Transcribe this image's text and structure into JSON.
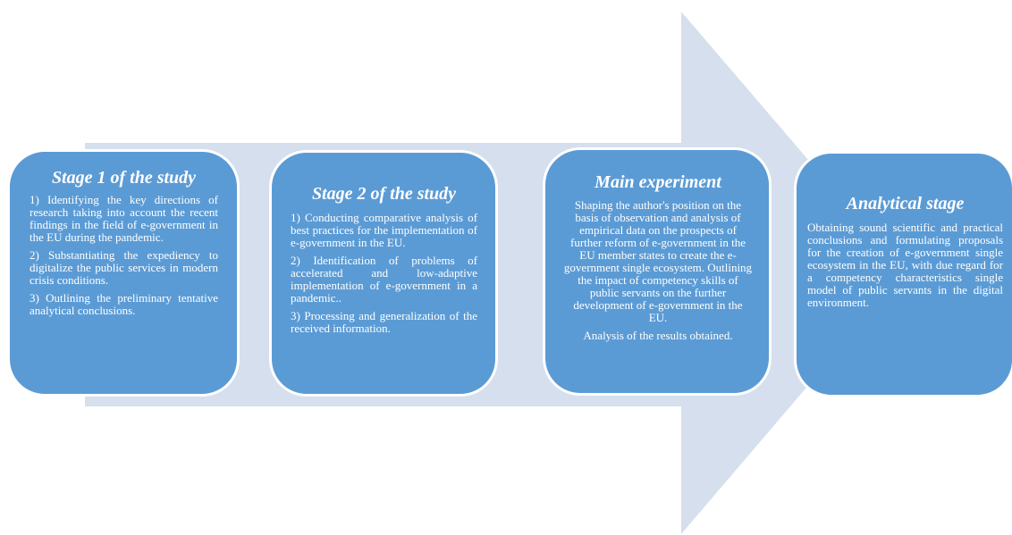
{
  "colors": {
    "arrow": "#d6dfed",
    "box": "#5b9bd5",
    "box_border": "#ffffff",
    "text": "#ffffff"
  },
  "stages": [
    {
      "title": "Stage 1 of the study",
      "items": [
        "1) Identifying the key directions of research taking into account the recent findings in the field of e-government in the EU during the pandemic.",
        "2) Substantiating the expediency to digitalize the public services in modern crisis conditions.",
        "3) Outlining the preliminary tentative analytical conclusions."
      ]
    },
    {
      "title": "Stage 2 of the study",
      "items": [
        "1) Conducting comparative analysis of best practices for the implementation of e-government in the EU.",
        "2) Identification of problems of accelerated and low-adaptive implementation of e-government in a pandemic..",
        "3) Processing and generalization of the received information."
      ]
    },
    {
      "title": "Main experiment",
      "items": [
        "Shaping the author's position on the basis of observation and analysis of empirical data on the prospects of further reform of e-government in the EU member states to create the e-government single ecosystem. Outlining the impact of competency skills of public servants on the further development of e-government in the EU.",
        "Analysis of the results obtained."
      ]
    },
    {
      "title": "Analytical stage",
      "items": [
        "Obtaining sound scientific and practical conclusions and formulating proposals for the creation of e-government single ecosystem in the EU, with due regard for a competency characteristics single model of public servants in the digital environment."
      ]
    }
  ]
}
